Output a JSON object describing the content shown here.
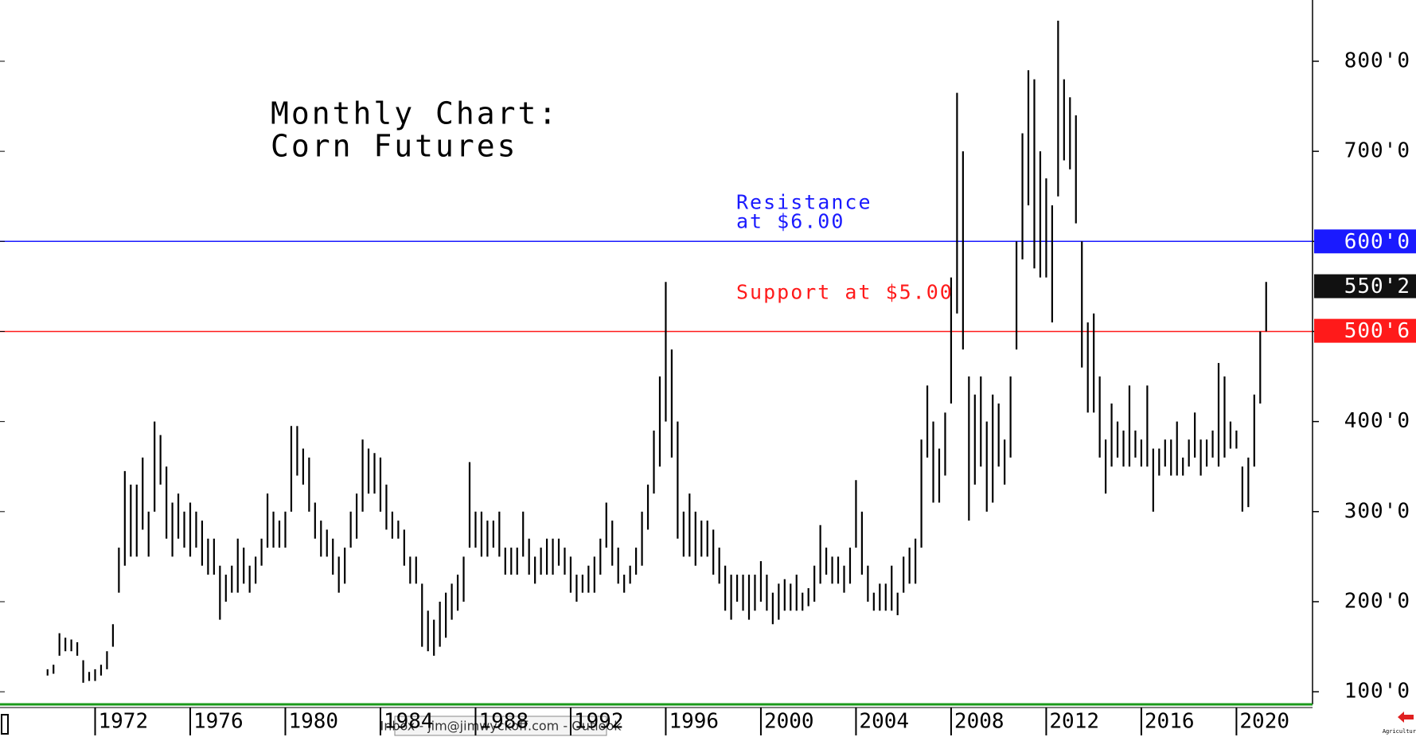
{
  "chart_data": {
    "type": "hilo",
    "title": [
      "Monthly Chart:",
      "Corn Futures"
    ],
    "color": "#000000",
    "xlim": [
      1968,
      2023.2
    ],
    "xticks": [
      1972,
      1976,
      1980,
      1984,
      1988,
      1992,
      1996,
      2000,
      2004,
      2008,
      2012,
      2016,
      2020
    ],
    "ylim": [
      86,
      868
    ],
    "yticks": [
      {
        "value": 100,
        "label": "100'0"
      },
      {
        "value": 200,
        "label": "200'0"
      },
      {
        "value": 300,
        "label": "300'0"
      },
      {
        "value": 400,
        "label": "400'0"
      },
      {
        "value": 500,
        "label": "500'0"
      },
      {
        "value": 600,
        "label": "600'0"
      },
      {
        "value": 700,
        "label": "700'0"
      },
      {
        "value": 800,
        "label": "800'0"
      }
    ],
    "lines": [
      {
        "value": 600,
        "label": [
          "Resistance",
          "at $6.00"
        ],
        "color": "#1a1aff"
      },
      {
        "value": 500,
        "label": [
          "Support at $5.00"
        ],
        "color": "#ff1a1a"
      }
    ],
    "badges": [
      {
        "value": 600,
        "label": "600'0",
        "color": "#1a1aff"
      },
      {
        "value": 550.25,
        "label": "550'2",
        "color": "#111111"
      },
      {
        "value": 500.75,
        "label": "500'6",
        "color": "#ff1a1a"
      }
    ],
    "x": [
      1970,
      1970.25,
      1970.5,
      1970.75,
      1971,
      1971.25,
      1971.5,
      1971.75,
      1972,
      1972.25,
      1972.5,
      1972.75,
      1973,
      1973.25,
      1973.5,
      1973.75,
      1974,
      1974.25,
      1974.5,
      1974.75,
      1975,
      1975.25,
      1975.5,
      1975.75,
      1976,
      1976.25,
      1976.5,
      1976.75,
      1977,
      1977.25,
      1977.5,
      1977.75,
      1978,
      1978.25,
      1978.5,
      1978.75,
      1979,
      1979.25,
      1979.5,
      1979.75,
      1980,
      1980.25,
      1980.5,
      1980.75,
      1981,
      1981.25,
      1981.5,
      1981.75,
      1982,
      1982.25,
      1982.5,
      1982.75,
      1983,
      1983.25,
      1983.5,
      1983.75,
      1984,
      1984.25,
      1984.5,
      1984.75,
      1985,
      1985.25,
      1985.5,
      1985.75,
      1986,
      1986.25,
      1986.5,
      1986.75,
      1987,
      1987.25,
      1987.5,
      1987.75,
      1988,
      1988.25,
      1988.5,
      1988.75,
      1989,
      1989.25,
      1989.5,
      1989.75,
      1990,
      1990.25,
      1990.5,
      1990.75,
      1991,
      1991.25,
      1991.5,
      1991.75,
      1992,
      1992.25,
      1992.5,
      1992.75,
      1993,
      1993.25,
      1993.5,
      1993.75,
      1994,
      1994.25,
      1994.5,
      1994.75,
      1995,
      1995.25,
      1995.5,
      1995.75,
      1996,
      1996.25,
      1996.5,
      1996.75,
      1997,
      1997.25,
      1997.5,
      1997.75,
      1998,
      1998.25,
      1998.5,
      1998.75,
      1999,
      1999.25,
      1999.5,
      1999.75,
      2000,
      2000.25,
      2000.5,
      2000.75,
      2001,
      2001.25,
      2001.5,
      2001.75,
      2002,
      2002.25,
      2002.5,
      2002.75,
      2003,
      2003.25,
      2003.5,
      2003.75,
      2004,
      2004.25,
      2004.5,
      2004.75,
      2005,
      2005.25,
      2005.5,
      2005.75,
      2006,
      2006.25,
      2006.5,
      2006.75,
      2007,
      2007.25,
      2007.5,
      2007.75,
      2008,
      2008.25,
      2008.5,
      2008.75,
      2009,
      2009.25,
      2009.5,
      2009.75,
      2010,
      2010.25,
      2010.5,
      2010.75,
      2011,
      2011.25,
      2011.5,
      2011.75,
      2012,
      2012.25,
      2012.5,
      2012.75,
      2013,
      2013.25,
      2013.5,
      2013.75,
      2014,
      2014.25,
      2014.5,
      2014.75,
      2015,
      2015.25,
      2015.5,
      2015.75,
      2016,
      2016.25,
      2016.5,
      2016.75,
      2017,
      2017.25,
      2017.5,
      2017.75,
      2018,
      2018.25,
      2018.5,
      2018.75,
      2019,
      2019.25,
      2019.5,
      2019.75,
      2020,
      2020.25,
      2020.5,
      2020.75,
      2021,
      2021.25
    ],
    "high": [
      125,
      130,
      165,
      160,
      158,
      155,
      135,
      122,
      125,
      130,
      145,
      175,
      260,
      345,
      330,
      330,
      360,
      300,
      400,
      385,
      350,
      310,
      320,
      300,
      310,
      300,
      290,
      270,
      270,
      240,
      230,
      240,
      270,
      260,
      240,
      250,
      270,
      320,
      300,
      290,
      300,
      395,
      395,
      370,
      360,
      310,
      290,
      280,
      270,
      250,
      260,
      300,
      320,
      380,
      370,
      365,
      360,
      330,
      300,
      290,
      280,
      250,
      250,
      220,
      190,
      180,
      200,
      210,
      220,
      230,
      250,
      355,
      300,
      300,
      290,
      290,
      300,
      260,
      260,
      260,
      300,
      270,
      250,
      260,
      270,
      270,
      270,
      260,
      250,
      230,
      230,
      240,
      250,
      270,
      310,
      290,
      260,
      230,
      240,
      260,
      300,
      330,
      390,
      450,
      555,
      480,
      400,
      300,
      320,
      300,
      290,
      290,
      280,
      260,
      240,
      230,
      230,
      230,
      230,
      230,
      245,
      230,
      210,
      220,
      225,
      220,
      230,
      210,
      215,
      240,
      285,
      260,
      250,
      250,
      240,
      260,
      335,
      300,
      240,
      210,
      220,
      220,
      240,
      210,
      250,
      260,
      270,
      380,
      440,
      400,
      370,
      410,
      560,
      765,
      700,
      450,
      430,
      450,
      400,
      430,
      420,
      380,
      450,
      600,
      720,
      790,
      780,
      700,
      670,
      640,
      845,
      780,
      760,
      740,
      600,
      510,
      520,
      450,
      380,
      420,
      400,
      390,
      440,
      390,
      380,
      440,
      370,
      370,
      380,
      380,
      400,
      360,
      380,
      410,
      380,
      380,
      390,
      465,
      450,
      400,
      390,
      350,
      360,
      430,
      500,
      555
    ],
    "low": [
      118,
      120,
      140,
      145,
      145,
      140,
      110,
      112,
      112,
      118,
      125,
      150,
      210,
      240,
      250,
      250,
      280,
      250,
      300,
      330,
      270,
      250,
      270,
      260,
      250,
      260,
      240,
      230,
      230,
      180,
      200,
      210,
      210,
      220,
      210,
      220,
      240,
      260,
      260,
      260,
      260,
      300,
      340,
      330,
      300,
      270,
      250,
      250,
      230,
      210,
      220,
      260,
      270,
      300,
      320,
      320,
      300,
      280,
      270,
      270,
      240,
      220,
      220,
      150,
      145,
      140,
      150,
      160,
      180,
      190,
      200,
      260,
      260,
      250,
      250,
      260,
      250,
      230,
      230,
      230,
      250,
      230,
      220,
      230,
      230,
      230,
      240,
      230,
      210,
      200,
      210,
      210,
      210,
      230,
      260,
      240,
      220,
      210,
      220,
      230,
      240,
      280,
      320,
      350,
      400,
      360,
      270,
      250,
      250,
      240,
      250,
      250,
      230,
      220,
      190,
      180,
      200,
      190,
      180,
      190,
      200,
      190,
      175,
      180,
      190,
      190,
      190,
      190,
      195,
      200,
      220,
      230,
      220,
      220,
      210,
      220,
      260,
      230,
      200,
      190,
      190,
      190,
      190,
      185,
      210,
      220,
      220,
      260,
      360,
      310,
      310,
      340,
      420,
      520,
      480,
      290,
      330,
      350,
      300,
      310,
      350,
      330,
      360,
      480,
      580,
      640,
      570,
      560,
      560,
      510,
      650,
      690,
      680,
      620,
      460,
      410,
      410,
      360,
      320,
      350,
      360,
      350,
      350,
      360,
      350,
      350,
      300,
      340,
      350,
      340,
      340,
      340,
      350,
      360,
      340,
      350,
      360,
      350,
      360,
      370,
      370,
      300,
      305,
      350,
      420,
      500
    ]
  },
  "overlay": {
    "tooltip": "Inbox - jim@jimwyckoff.com - Outlook",
    "corner_label": "Agriculture"
  }
}
